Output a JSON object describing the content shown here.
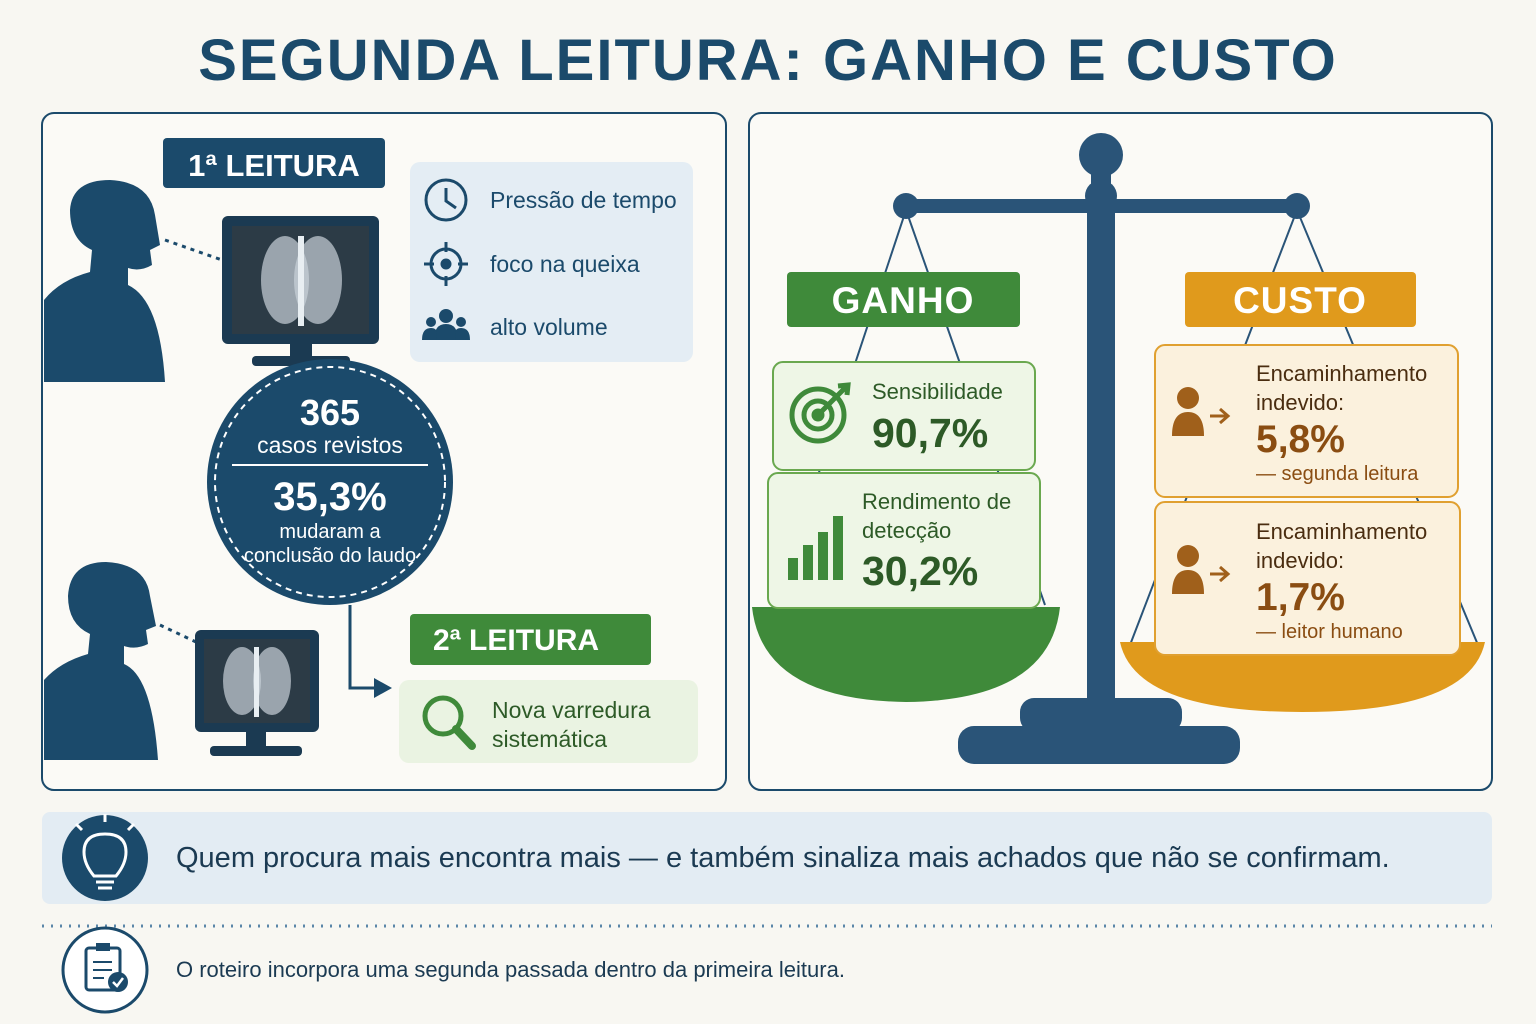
{
  "title": "SEGUNDA LEITURA: GANHO E CUSTO",
  "left_panel": {
    "first_reading": {
      "label": "1ª LEITURA",
      "factors": [
        "Pressão de tempo",
        "foco na queixa",
        "alto volume"
      ]
    },
    "circle": {
      "count": "365",
      "count_label": "casos revistos",
      "percent": "35,3%",
      "percent_label": "mudaram a conclusão do laudo"
    },
    "second_reading": {
      "label": "2ª LEITURA",
      "note": "Nova varredura sistemática"
    }
  },
  "scale": {
    "gain": {
      "label": "GANHO",
      "items": [
        {
          "label": "Sensibilidade",
          "value": "90,7%"
        },
        {
          "label": "Rendimento de detecção",
          "value": "30,2%"
        }
      ]
    },
    "cost": {
      "label": "CUSTO",
      "items": [
        {
          "label": "Encaminhamento indevido:",
          "value": "5,8%",
          "note": "— segunda leitura"
        },
        {
          "label": "Encaminhamento indevido:",
          "value": "1,7%",
          "note": "— leitor humano"
        }
      ]
    }
  },
  "insight": "Quem procura mais encontra mais — e também sinaliza mais achados que não se confirmam.",
  "footer": "O roteiro incorpora uma segunda passada dentro da primeira leitura."
}
